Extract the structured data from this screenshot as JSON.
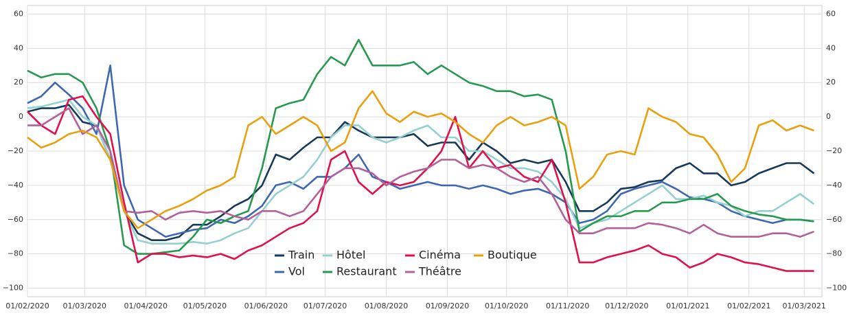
{
  "chart_data": {
    "type": "line",
    "x": [
      "01/02/2020",
      "08/02/2020",
      "15/02/2020",
      "22/02/2020",
      "29/02/2020",
      "07/03/2020",
      "14/03/2020",
      "21/03/2020",
      "28/03/2020",
      "04/04/2020",
      "11/04/2020",
      "18/04/2020",
      "25/04/2020",
      "02/05/2020",
      "09/05/2020",
      "16/05/2020",
      "23/05/2020",
      "30/05/2020",
      "06/06/2020",
      "13/06/2020",
      "20/06/2020",
      "27/06/2020",
      "04/07/2020",
      "11/07/2020",
      "18/07/2020",
      "25/07/2020",
      "01/08/2020",
      "08/08/2020",
      "15/08/2020",
      "22/08/2020",
      "29/08/2020",
      "05/09/2020",
      "12/09/2020",
      "19/09/2020",
      "26/09/2020",
      "03/10/2020",
      "10/10/2020",
      "17/10/2020",
      "24/10/2020",
      "31/10/2020",
      "07/11/2020",
      "14/11/2020",
      "21/11/2020",
      "28/11/2020",
      "05/12/2020",
      "12/12/2020",
      "19/12/2020",
      "26/12/2020",
      "02/01/2021",
      "09/01/2021",
      "16/01/2021",
      "23/01/2021",
      "30/01/2021",
      "06/02/2021",
      "13/02/2021",
      "20/02/2021",
      "27/02/2021",
      "06/03/2021"
    ],
    "series": [
      {
        "name": "Train",
        "color": "#16395a",
        "values": [
          3,
          5,
          5,
          7,
          -3,
          -5,
          -25,
          -55,
          -68,
          -72,
          -72,
          -70,
          -63,
          -63,
          -58,
          -52,
          -48,
          -40,
          -22,
          -25,
          -18,
          -12,
          -12,
          -3,
          -8,
          -12,
          -12,
          -12,
          -10,
          -17,
          -15,
          -15,
          -25,
          -15,
          -20,
          -27,
          -25,
          -27,
          -25,
          -38,
          -55,
          -55,
          -50,
          -42,
          -41,
          -38,
          -37,
          -30,
          -27,
          -33,
          -33,
          -40,
          -38,
          -33,
          -30,
          -27,
          -27,
          -33
        ]
      },
      {
        "name": "Vol",
        "color": "#3d67b1",
        "values": [
          8,
          12,
          20,
          13,
          5,
          -10,
          30,
          -40,
          -60,
          -65,
          -70,
          -68,
          -66,
          -65,
          -60,
          -62,
          -58,
          -52,
          -40,
          -38,
          -42,
          -35,
          -35,
          -30,
          -22,
          -35,
          -38,
          -42,
          -40,
          -38,
          -40,
          -40,
          -42,
          -40,
          -42,
          -45,
          -43,
          -42,
          -45,
          -50,
          -62,
          -60,
          -55,
          -45,
          -42,
          -40,
          -38,
          -42,
          -47,
          -48,
          -50,
          -55,
          -58,
          -60,
          -62,
          -60,
          -60,
          -61
        ]
      },
      {
        "name": "Hôtel",
        "color": "#94d0cf",
        "values": [
          5,
          6,
          8,
          10,
          0,
          -5,
          -25,
          -55,
          -72,
          -74,
          -74,
          -74,
          -73,
          -74,
          -72,
          -68,
          -65,
          -55,
          -45,
          -40,
          -35,
          -25,
          -12,
          -5,
          -5,
          -12,
          -15,
          -12,
          -8,
          -5,
          -12,
          -12,
          -20,
          -20,
          -25,
          -30,
          -30,
          -32,
          -38,
          -48,
          -65,
          -62,
          -60,
          -55,
          -50,
          -45,
          -40,
          -48,
          -48,
          -46,
          -50,
          -52,
          -58,
          -55,
          -55,
          -50,
          -45,
          -51
        ]
      },
      {
        "name": "Restaurant",
        "color": "#26994f",
        "values": [
          27,
          23,
          25,
          25,
          20,
          5,
          -20,
          -75,
          -80,
          -80,
          -79,
          -78,
          -70,
          -60,
          -62,
          -58,
          -55,
          -30,
          5,
          8,
          10,
          25,
          35,
          30,
          45,
          30,
          30,
          30,
          32,
          25,
          30,
          25,
          20,
          18,
          15,
          15,
          12,
          13,
          10,
          -20,
          -67,
          -62,
          -58,
          -58,
          -55,
          -55,
          -50,
          -50,
          -48,
          -48,
          -45,
          -52,
          -55,
          -57,
          -58,
          -60,
          -60,
          -61
        ]
      },
      {
        "name": "Cinéma",
        "color": "#e0104b",
        "values": [
          3,
          -5,
          -10,
          10,
          12,
          0,
          -10,
          -50,
          -85,
          -80,
          -80,
          -82,
          -81,
          -82,
          -80,
          -83,
          -78,
          -75,
          -70,
          -65,
          -62,
          -55,
          -25,
          -20,
          -38,
          -45,
          -38,
          -40,
          -38,
          -30,
          -20,
          0,
          -30,
          -20,
          -30,
          -28,
          -35,
          -38,
          -25,
          -50,
          -85,
          -85,
          -82,
          -80,
          -78,
          -75,
          -80,
          -82,
          -88,
          -85,
          -80,
          -82,
          -85,
          -86,
          -88,
          -90,
          -90,
          -90
        ]
      },
      {
        "name": "Théâtre",
        "color": "#b2609b",
        "values": [
          -5,
          -5,
          0,
          5,
          -10,
          -5,
          -20,
          -55,
          -56,
          -55,
          -60,
          -56,
          -55,
          -56,
          -55,
          -58,
          -60,
          -55,
          -55,
          -58,
          -55,
          -45,
          -35,
          -30,
          -30,
          -33,
          -40,
          -35,
          -32,
          -30,
          -25,
          -25,
          -30,
          -28,
          -30,
          -35,
          -38,
          -35,
          -45,
          -60,
          -68,
          -68,
          -65,
          -65,
          -65,
          -62,
          -63,
          -65,
          -68,
          -63,
          -68,
          -70,
          -70,
          -70,
          -68,
          -68,
          -70,
          -67
        ]
      },
      {
        "name": "Boutique",
        "color": "#e9a00f",
        "values": [
          -12,
          -18,
          -15,
          -10,
          -8,
          -12,
          -25,
          -55,
          -65,
          -60,
          -55,
          -52,
          -48,
          -43,
          -40,
          -35,
          -5,
          0,
          -10,
          -5,
          0,
          -5,
          -20,
          -15,
          5,
          15,
          2,
          -3,
          3,
          0,
          2,
          -3,
          -10,
          -15,
          -5,
          0,
          -5,
          -3,
          0,
          -5,
          -42,
          -35,
          -22,
          -20,
          -22,
          5,
          0,
          -3,
          -10,
          -12,
          -22,
          -38,
          -30,
          -5,
          -2,
          -8,
          -5,
          -8
        ]
      }
    ],
    "xlim": [
      "01/02/2020",
      "10/03/2021"
    ],
    "xticks": [
      "01/02/2020",
      "01/03/2020",
      "01/04/2020",
      "01/05/2020",
      "01/06/2020",
      "01/07/2020",
      "01/08/2020",
      "01/09/2020",
      "01/10/2020",
      "01/11/2020",
      "01/12/2020",
      "01/01/2021",
      "01/02/2021",
      "01/03/2021"
    ],
    "ylim": [
      -105,
      65
    ],
    "yticks": [
      {
        "value": -100,
        "label": "−100"
      },
      {
        "value": -80,
        "label": "−80"
      },
      {
        "value": -60,
        "label": "−60"
      },
      {
        "value": -40,
        "label": "−40"
      },
      {
        "value": -20,
        "label": "−20"
      },
      0,
      20,
      40,
      60
    ],
    "grid": true,
    "legend": "bottom-center"
  }
}
